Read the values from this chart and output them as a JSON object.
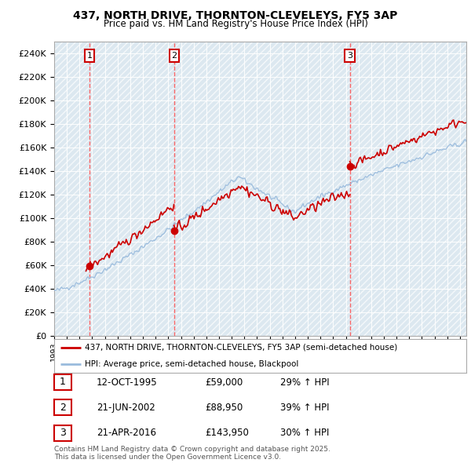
{
  "title1": "437, NORTH DRIVE, THORNTON-CLEVELEYS, FY5 3AP",
  "title2": "Price paid vs. HM Land Registry's House Price Index (HPI)",
  "ylim": [
    0,
    250000
  ],
  "yticks": [
    0,
    20000,
    40000,
    60000,
    80000,
    100000,
    120000,
    140000,
    160000,
    180000,
    200000,
    220000,
    240000
  ],
  "ytick_labels": [
    "£0",
    "£20K",
    "£40K",
    "£60K",
    "£80K",
    "£100K",
    "£120K",
    "£140K",
    "£160K",
    "£180K",
    "£200K",
    "£220K",
    "£240K"
  ],
  "xlim_start": 1993.0,
  "xlim_end": 2025.5,
  "xtick_years": [
    1993,
    1994,
    1995,
    1996,
    1997,
    1998,
    1999,
    2000,
    2001,
    2002,
    2003,
    2004,
    2005,
    2006,
    2007,
    2008,
    2009,
    2010,
    2011,
    2012,
    2013,
    2014,
    2015,
    2016,
    2017,
    2018,
    2019,
    2020,
    2021,
    2022,
    2023,
    2024,
    2025
  ],
  "sale_dates": [
    1995.79,
    2002.47,
    2016.31
  ],
  "sale_prices": [
    59000,
    88950,
    143950
  ],
  "sale_labels": [
    "1",
    "2",
    "3"
  ],
  "red_line_color": "#cc0000",
  "blue_line_color": "#99bbdd",
  "grid_color": "#cccccc",
  "bg_color": "#dce8f0",
  "legend_label1": "437, NORTH DRIVE, THORNTON-CLEVELEYS, FY5 3AP (semi-detached house)",
  "legend_label2": "HPI: Average price, semi-detached house, Blackpool",
  "table_entries": [
    {
      "label": "1",
      "date": "12-OCT-1995",
      "price": "£59,000",
      "change": "29% ↑ HPI"
    },
    {
      "label": "2",
      "date": "21-JUN-2002",
      "price": "£88,950",
      "change": "39% ↑ HPI"
    },
    {
      "label": "3",
      "date": "21-APR-2016",
      "price": "£143,950",
      "change": "30% ↑ HPI"
    }
  ],
  "footer": "Contains HM Land Registry data © Crown copyright and database right 2025.\nThis data is licensed under the Open Government Licence v3.0."
}
